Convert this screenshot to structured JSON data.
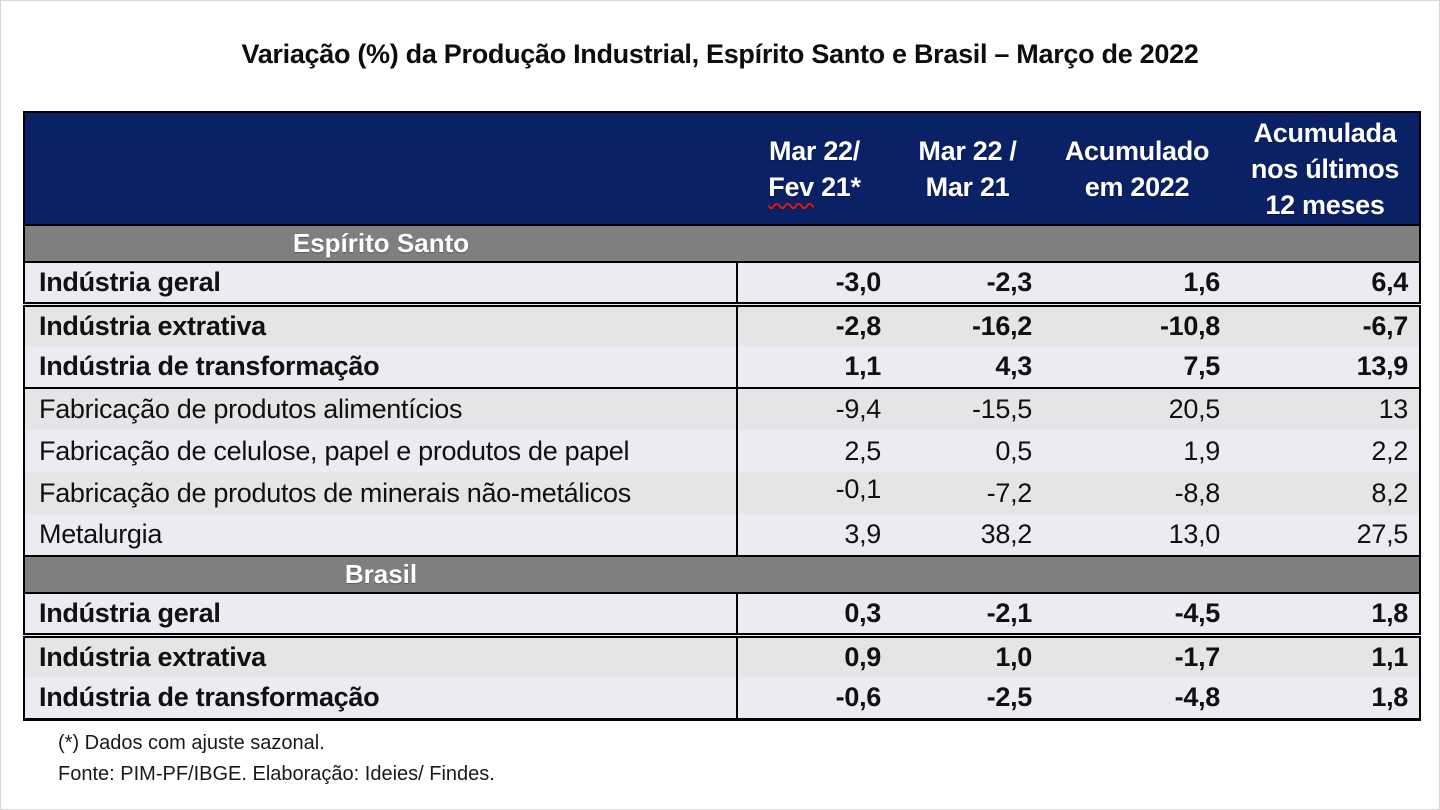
{
  "title": "Variação (%) da Produção Industrial, Espírito Santo e Brasil – Março de 2022",
  "chart_data": {
    "type": "table",
    "title": "Variação (%) da Produção Industrial, Espírito Santo e Brasil – Março de 2022",
    "unit": "%",
    "columns": [
      {
        "label": "Mar 22/ Fev 21*",
        "lines": [
          "Mar 22/",
          "Fev 21*"
        ],
        "misspelled_word": "Fev"
      },
      {
        "label": "Mar 22 / Mar 21",
        "lines": [
          "Mar 22 /",
          "Mar 21"
        ]
      },
      {
        "label": "Acumulado em 2022",
        "lines": [
          "Acumulado",
          "em 2022"
        ]
      },
      {
        "label": "Acumulada nos últimos 12 meses",
        "lines": [
          "Acumulada",
          "nos últimos",
          "12 meses"
        ]
      }
    ],
    "sections": [
      {
        "label": "Espírito Santo",
        "rows": [
          {
            "label": "Indústria geral",
            "bold": true,
            "values": [
              "-3,0",
              "-2,3",
              "1,6",
              "6,4"
            ],
            "divider_after": "double"
          },
          {
            "label": "Indústria extrativa",
            "bold": true,
            "values": [
              "-2,8",
              "-16,2",
              "-10,8",
              "-6,7"
            ],
            "divider_after": "none"
          },
          {
            "label": "Indústria de transformação",
            "bold": true,
            "values": [
              "1,1",
              "4,3",
              "7,5",
              "13,9"
            ],
            "divider_after": "solid"
          },
          {
            "label": "Fabricação de produtos alimentícios",
            "bold": false,
            "values": [
              "-9,4",
              "-15,5",
              "20,5",
              "13"
            ],
            "divider_after": "none"
          },
          {
            "label": "Fabricação de celulose, papel e produtos de papel",
            "bold": false,
            "values": [
              "2,5",
              "0,5",
              "1,9",
              "2,2"
            ],
            "divider_after": "none"
          },
          {
            "label": "Fabricação de produtos de minerais não-metálicos",
            "bold": false,
            "values": [
              "-0,1",
              "-7,2",
              "-8,8",
              "8,2"
            ],
            "divider_after": "none"
          },
          {
            "label": "Metalurgia",
            "bold": false,
            "values": [
              "3,9",
              "38,2",
              "13,0",
              "27,5"
            ],
            "divider_after": "none"
          }
        ]
      },
      {
        "label": "Brasil",
        "rows": [
          {
            "label": "Indústria geral",
            "bold": true,
            "values": [
              "0,3",
              "-2,1",
              "-4,5",
              "1,8"
            ],
            "divider_after": "double"
          },
          {
            "label": "Indústria extrativa",
            "bold": true,
            "values": [
              "0,9",
              "1,0",
              "-1,7",
              "1,1"
            ],
            "divider_after": "none"
          },
          {
            "label": "Indústria de transformação",
            "bold": true,
            "values": [
              "-0,6",
              "-2,5",
              "-4,8",
              "1,8"
            ],
            "divider_after": "none"
          }
        ]
      }
    ]
  },
  "footnotes": [
    "(*) Dados com ajuste sazonal.",
    "Fonte: PIM-PF/IBGE. Elaboração: Ideies/ Findes."
  ],
  "colors": {
    "header_bg": "#0A2166",
    "section_bg": "#7F7F7F",
    "row_light": "#EDEAF3",
    "row_alt": "#E7E4E7",
    "spellcheck_underline": "#e01616",
    "border": "#000000"
  }
}
